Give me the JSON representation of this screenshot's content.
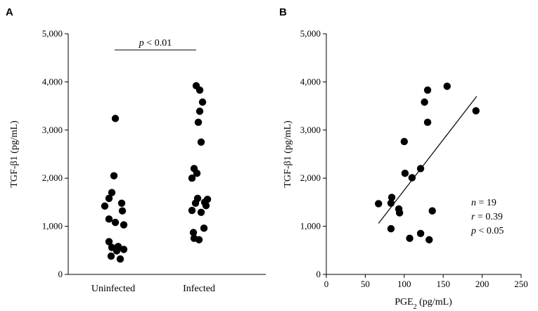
{
  "chart_data": [
    {
      "panel": "A",
      "type": "scatter",
      "title": "",
      "xlabel": "",
      "ylabel": "TGF-β1 (pg/mL)",
      "ylim": [
        0,
        5000
      ],
      "yticks": [
        "0",
        "1,000",
        "2,000",
        "3,000",
        "4,000",
        "5,000"
      ],
      "ytick_values": [
        0,
        1000,
        2000,
        3000,
        4000,
        5000
      ],
      "categories": [
        "Uninfected",
        "Infected"
      ],
      "series": [
        {
          "name": "Uninfected",
          "values": [
            3240,
            2050,
            1700,
            1580,
            1480,
            1420,
            1320,
            1150,
            1080,
            1030,
            680,
            580,
            560,
            520,
            490,
            380,
            320
          ]
        },
        {
          "name": "Infected",
          "values": [
            3920,
            3830,
            3580,
            3390,
            3160,
            2750,
            2200,
            2100,
            2000,
            1580,
            1560,
            1500,
            1480,
            1430,
            1330,
            1290,
            960,
            870,
            750,
            720
          ]
        }
      ],
      "annotation": {
        "p_symbol": "p",
        "p_text": " < 0.01"
      }
    },
    {
      "panel": "B",
      "type": "scatter",
      "title": "",
      "xlabel_main": "PGE",
      "xlabel_sub": "2",
      "xlabel_units": " (pg/mL)",
      "ylabel": "TGF-β1 (pg/mL)",
      "xlim": [
        0,
        250
      ],
      "ylim": [
        0,
        5000
      ],
      "xticks": [
        "0",
        "50",
        "100",
        "150",
        "200",
        "250"
      ],
      "xtick_values": [
        0,
        50,
        100,
        150,
        200,
        250
      ],
      "yticks": [
        "0",
        "1,000",
        "2,000",
        "3,000",
        "4,000",
        "5,000"
      ],
      "ytick_values": [
        0,
        1000,
        2000,
        3000,
        4000,
        5000
      ],
      "points": [
        {
          "x": 155,
          "y": 3910
        },
        {
          "x": 130,
          "y": 3830
        },
        {
          "x": 126,
          "y": 3580
        },
        {
          "x": 192,
          "y": 3400
        },
        {
          "x": 130,
          "y": 3160
        },
        {
          "x": 100,
          "y": 2760
        },
        {
          "x": 121,
          "y": 2200
        },
        {
          "x": 101,
          "y": 2100
        },
        {
          "x": 110,
          "y": 2010
        },
        {
          "x": 84,
          "y": 1600
        },
        {
          "x": 83,
          "y": 1480
        },
        {
          "x": 67,
          "y": 1470
        },
        {
          "x": 93,
          "y": 1360
        },
        {
          "x": 94,
          "y": 1280
        },
        {
          "x": 136,
          "y": 1320
        },
        {
          "x": 83,
          "y": 950
        },
        {
          "x": 121,
          "y": 850
        },
        {
          "x": 107,
          "y": 750
        },
        {
          "x": 132,
          "y": 720
        }
      ],
      "fit_line": {
        "x1": 67,
        "y1": 1060,
        "x2": 193,
        "y2": 3700
      },
      "stats": {
        "n_symbol": "n",
        "n_text": " = 19",
        "r_symbol": "r",
        "r_text": " = 0.39",
        "p_symbol": "p",
        "p_text": " < 0.05"
      }
    }
  ]
}
